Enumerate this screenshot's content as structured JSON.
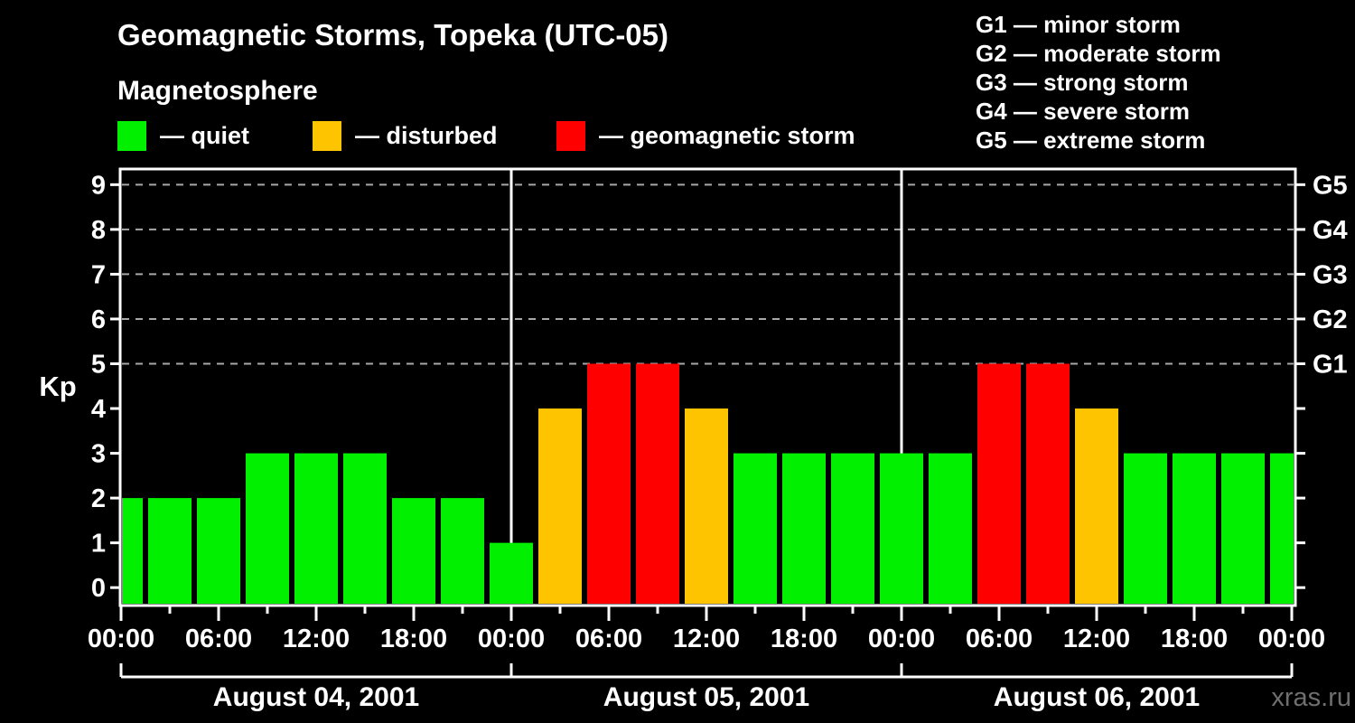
{
  "header": {
    "title": "Geomagnetic Storms, Topeka (UTC-05)",
    "subtitle": "Magnetosphere"
  },
  "activity_legend": [
    {
      "name": "quiet",
      "label": "— quiet",
      "color": "#00f000"
    },
    {
      "name": "disturbed",
      "label": "— disturbed",
      "color": "#ffc400"
    },
    {
      "name": "storm",
      "label": "— geomagnetic storm",
      "color": "#ff0000"
    }
  ],
  "storm_scale_legend": [
    "G1 — minor storm",
    "G2 — moderate storm",
    "G3 — strong storm",
    "G4 — severe storm",
    "G5 — extreme storm"
  ],
  "watermark": "xras.ru",
  "chart_data": {
    "type": "bar",
    "title": "Geomagnetic Storms, Topeka (UTC-05)",
    "ylabel": "Kp",
    "ylim": [
      -0.4,
      9.35
    ],
    "yticks": [
      0,
      1,
      2,
      3,
      4,
      5,
      6,
      7,
      8,
      9
    ],
    "gridlines_kp": [
      5,
      6,
      7,
      8,
      9
    ],
    "grid_style": "dashed",
    "right_axis": [
      {
        "kp": 5,
        "label": "G1"
      },
      {
        "kp": 6,
        "label": "G2"
      },
      {
        "kp": 7,
        "label": "G3"
      },
      {
        "kp": 8,
        "label": "G4"
      },
      {
        "kp": 9,
        "label": "G5"
      }
    ],
    "x_unit_hours": 3,
    "x_range_hours": [
      0,
      72
    ],
    "x_major_tick_labels": [
      "00:00",
      "06:00",
      "12:00",
      "18:00",
      "00:00",
      "06:00",
      "12:00",
      "18:00",
      "00:00",
      "06:00",
      "12:00",
      "18:00",
      "00:00"
    ],
    "days": [
      {
        "label": "August 04, 2001",
        "start_hour": 0
      },
      {
        "label": "August 05, 2001",
        "start_hour": 24
      },
      {
        "label": "August 06, 2001",
        "start_hour": 48
      }
    ],
    "color_rule": {
      "quiet_kp_max": 3,
      "disturbed_kp": 4,
      "storm_kp_min": 5
    },
    "series": [
      {
        "name": "Kp index",
        "points": [
          {
            "hour": 0,
            "kp": 2
          },
          {
            "hour": 3,
            "kp": 2
          },
          {
            "hour": 6,
            "kp": 2
          },
          {
            "hour": 9,
            "kp": 3
          },
          {
            "hour": 12,
            "kp": 3
          },
          {
            "hour": 15,
            "kp": 3
          },
          {
            "hour": 18,
            "kp": 2
          },
          {
            "hour": 21,
            "kp": 2
          },
          {
            "hour": 24,
            "kp": 1
          },
          {
            "hour": 27,
            "kp": 4
          },
          {
            "hour": 30,
            "kp": 5
          },
          {
            "hour": 33,
            "kp": 5
          },
          {
            "hour": 36,
            "kp": 4
          },
          {
            "hour": 39,
            "kp": 3
          },
          {
            "hour": 42,
            "kp": 3
          },
          {
            "hour": 45,
            "kp": 3
          },
          {
            "hour": 48,
            "kp": 3
          },
          {
            "hour": 51,
            "kp": 3
          },
          {
            "hour": 54,
            "kp": 5
          },
          {
            "hour": 57,
            "kp": 5
          },
          {
            "hour": 60,
            "kp": 4
          },
          {
            "hour": 63,
            "kp": 3
          },
          {
            "hour": 66,
            "kp": 3
          },
          {
            "hour": 69,
            "kp": 3
          },
          {
            "hour": 72,
            "kp": 3
          }
        ]
      }
    ]
  }
}
